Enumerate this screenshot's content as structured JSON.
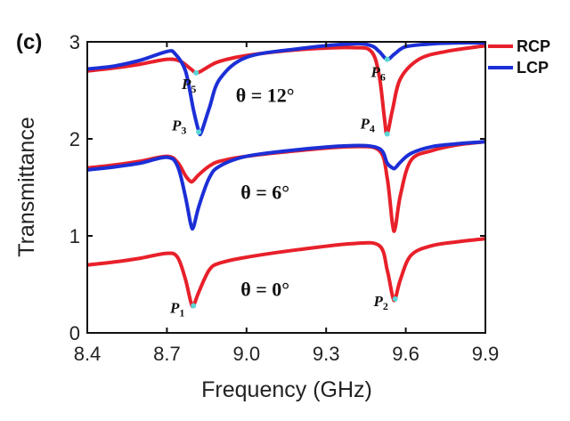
{
  "chart_data": {
    "type": "line",
    "panel_label": "(c)",
    "xlabel": "Frequency (GHz)",
    "ylabel": "Transmittance",
    "xlim": [
      8.4,
      9.9
    ],
    "ylim": [
      0,
      3
    ],
    "xticks": [
      "8.4",
      "8.7",
      "9.0",
      "9.3",
      "9.6",
      "9.9"
    ],
    "yticks": [
      "0",
      "1",
      "2",
      "3"
    ],
    "legend": {
      "placement": "top-right-outside",
      "entries": [
        {
          "label": "RCP",
          "color": "#e8202a"
        },
        {
          "label": "LCP",
          "color": "#1c2fd6"
        }
      ]
    },
    "groups": [
      {
        "label": "θ = 0°",
        "offset": 0,
        "series": [
          {
            "name": "RCP",
            "color": "#e8202a",
            "x": [
              8.4,
              8.5,
              8.6,
              8.7,
              8.74,
              8.77,
              8.79,
              8.8,
              8.82,
              8.86,
              8.9,
              9.0,
              9.2,
              9.4,
              9.5,
              9.53,
              9.55,
              9.56,
              9.58,
              9.62,
              9.7,
              9.8,
              9.9
            ],
            "y": [
              0.7,
              0.73,
              0.77,
              0.82,
              0.78,
              0.55,
              0.32,
              0.28,
              0.42,
              0.65,
              0.72,
              0.78,
              0.86,
              0.92,
              0.9,
              0.65,
              0.38,
              0.35,
              0.55,
              0.8,
              0.9,
              0.94,
              0.97
            ]
          }
        ]
      },
      {
        "label": "θ = 6°",
        "offset": 1,
        "series": [
          {
            "name": "RCP",
            "color": "#e8202a",
            "x": [
              8.4,
              8.5,
              8.6,
              8.7,
              8.74,
              8.77,
              8.79,
              8.8,
              8.82,
              8.86,
              8.9,
              9.0,
              9.2,
              9.4,
              9.5,
              9.53,
              9.55,
              9.56,
              9.58,
              9.62,
              9.7,
              9.8,
              9.9
            ],
            "y": [
              1.7,
              1.73,
              1.77,
              1.82,
              1.76,
              1.62,
              1.56,
              1.57,
              1.63,
              1.72,
              1.77,
              1.82,
              1.88,
              1.92,
              1.88,
              1.6,
              1.12,
              1.08,
              1.42,
              1.78,
              1.88,
              1.94,
              1.97
            ]
          },
          {
            "name": "LCP",
            "color": "#1c2fd6",
            "x": [
              8.4,
              8.5,
              8.6,
              8.7,
              8.74,
              8.77,
              8.79,
              8.8,
              8.82,
              8.86,
              8.9,
              9.0,
              9.2,
              9.4,
              9.5,
              9.53,
              9.55,
              9.56,
              9.58,
              9.62,
              9.7,
              9.8,
              9.9
            ],
            "y": [
              1.68,
              1.71,
              1.75,
              1.81,
              1.72,
              1.4,
              1.12,
              1.09,
              1.3,
              1.6,
              1.72,
              1.82,
              1.89,
              1.93,
              1.9,
              1.75,
              1.7,
              1.7,
              1.76,
              1.85,
              1.92,
              1.95,
              1.97
            ]
          }
        ]
      },
      {
        "label": "θ = 12°",
        "offset": 2,
        "series": [
          {
            "name": "RCP",
            "color": "#e8202a",
            "x": [
              8.4,
              8.5,
              8.6,
              8.7,
              8.75,
              8.79,
              8.81,
              8.83,
              8.86,
              8.9,
              9.0,
              9.2,
              9.4,
              9.47,
              9.5,
              9.52,
              9.53,
              9.55,
              9.58,
              9.65,
              9.75,
              9.9
            ],
            "y": [
              2.7,
              2.73,
              2.77,
              2.82,
              2.8,
              2.72,
              2.68,
              2.7,
              2.75,
              2.8,
              2.86,
              2.92,
              2.94,
              2.9,
              2.65,
              2.2,
              2.05,
              2.3,
              2.62,
              2.82,
              2.9,
              2.96
            ]
          },
          {
            "name": "LCP",
            "color": "#1c2fd6",
            "x": [
              8.4,
              8.5,
              8.6,
              8.7,
              8.73,
              8.77,
              8.8,
              8.82,
              8.83,
              8.86,
              8.9,
              9.0,
              9.2,
              9.4,
              9.47,
              9.5,
              9.53,
              9.56,
              9.6,
              9.7,
              9.8,
              9.9
            ],
            "y": [
              2.72,
              2.75,
              2.81,
              2.9,
              2.88,
              2.7,
              2.3,
              2.08,
              2.07,
              2.32,
              2.62,
              2.84,
              2.93,
              2.98,
              2.96,
              2.9,
              2.82,
              2.88,
              2.95,
              2.98,
              2.99,
              2.99
            ]
          }
        ]
      }
    ],
    "peaks": [
      {
        "label": "P",
        "sub": "1",
        "x": 8.8,
        "y": 0.28
      },
      {
        "label": "P",
        "sub": "2",
        "x": 9.56,
        "y": 0.35
      },
      {
        "label": "P",
        "sub": "3",
        "x": 8.82,
        "y": 2.07
      },
      {
        "label": "P",
        "sub": "4",
        "x": 9.53,
        "y": 2.05
      },
      {
        "label": "P",
        "sub": "5",
        "x": 8.81,
        "y": 2.68
      },
      {
        "label": "P",
        "sub": "6",
        "x": 9.53,
        "y": 2.82
      }
    ],
    "grid": false
  }
}
